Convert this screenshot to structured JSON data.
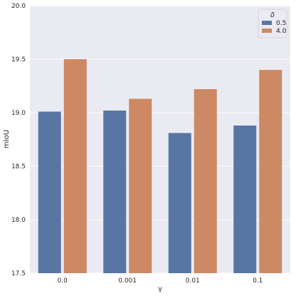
{
  "chart_data": {
    "type": "bar",
    "categories": [
      "0.0",
      "0.001",
      "0.01",
      "0.1"
    ],
    "series": [
      {
        "name": "0.5",
        "values": [
          19.01,
          19.02,
          18.81,
          18.88
        ],
        "color": "#5875a4"
      },
      {
        "name": "4.0",
        "values": [
          19.5,
          19.13,
          19.22,
          19.4
        ],
        "color": "#cc8963"
      }
    ],
    "xlabel": "γ",
    "ylabel": "mIoU",
    "ylim": [
      17.5,
      20.0
    ],
    "yticks": [
      "17.5",
      "18.0",
      "18.5",
      "19.0",
      "19.5",
      "20.0"
    ],
    "grid": true,
    "background": "#eaeaf2",
    "legend": {
      "title": "δ",
      "placement": "top-right"
    }
  }
}
